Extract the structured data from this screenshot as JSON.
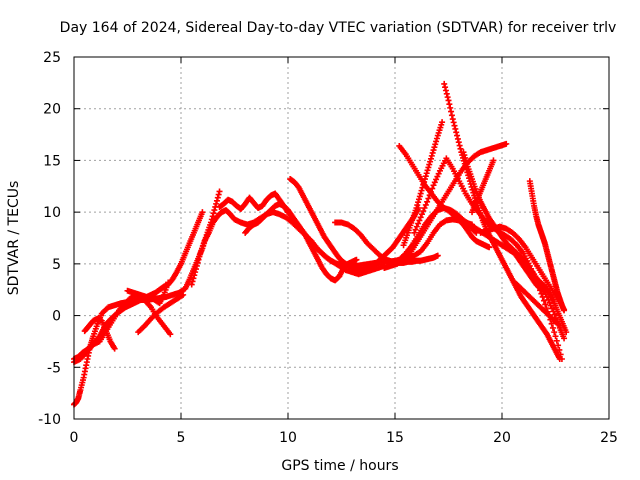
{
  "chart_data": {
    "type": "scatter",
    "title": "Day 164 of 2024, Sidereal Day-to-day VTEC variation (SDTVAR) for receiver trlv",
    "xlabel": "GPS time / hours",
    "ylabel": "SDTVAR / TECUs",
    "xlim": [
      0,
      25
    ],
    "ylim": [
      -10,
      25
    ],
    "xticks": [
      "0",
      "5",
      "10",
      "15",
      "20",
      "25"
    ],
    "yticks": [
      "-10",
      "-5",
      "0",
      "5",
      "10",
      "15",
      "20",
      "25"
    ],
    "grid": true,
    "marker": "+",
    "color": "#ff0000",
    "series": [
      {
        "x": [
          0.0,
          0.1,
          0.2,
          0.3,
          0.45,
          0.6,
          0.75,
          0.9,
          1.1,
          1.3,
          1.6,
          1.9,
          2.2,
          2.5,
          2.8,
          3.1,
          3.4,
          3.7,
          4.0,
          4.3,
          4.6,
          4.9,
          5.2,
          5.4,
          5.6,
          5.8,
          6.0,
          6.2,
          6.4,
          6.6,
          6.8
        ],
        "y": [
          -8.6,
          -8.4,
          -8.0,
          -7.2,
          -6.0,
          -4.5,
          -3.0,
          -2.0,
          -0.8,
          0.2,
          0.8,
          1.0,
          1.2,
          1.3,
          1.4,
          1.5,
          1.5,
          1.6,
          1.7,
          1.8,
          2.0,
          2.2,
          2.6,
          3.5,
          4.5,
          5.5,
          6.5,
          7.8,
          9.0,
          10.5,
          12.0
        ]
      },
      {
        "x": [
          0.0,
          0.2,
          0.4,
          0.6,
          0.8,
          1.0,
          1.2,
          1.4,
          1.6,
          1.8,
          2.0,
          2.2,
          2.4,
          2.6,
          2.8,
          3.0,
          3.2,
          3.4,
          3.6,
          3.8,
          4.0,
          4.2,
          4.4,
          4.6,
          4.8,
          5.0,
          5.2,
          5.4,
          5.6,
          5.8,
          6.0
        ],
        "y": [
          -4.2,
          -4.0,
          -3.6,
          -3.3,
          -3.0,
          -2.5,
          -2.0,
          -1.2,
          -0.6,
          -0.2,
          0.2,
          0.5,
          0.8,
          1.0,
          1.2,
          1.4,
          1.6,
          1.8,
          2.0,
          2.2,
          2.5,
          2.8,
          3.0,
          3.5,
          4.2,
          5.0,
          6.0,
          7.0,
          8.0,
          9.0,
          10.0
        ]
      },
      {
        "x": [
          0.0,
          0.3,
          0.6,
          0.9,
          1.2,
          1.5,
          1.8,
          2.1,
          2.4,
          2.7,
          3.0,
          3.3,
          3.6,
          3.9,
          4.2,
          4.5
        ],
        "y": [
          -4.5,
          -4.2,
          -3.5,
          -2.8,
          -2.5,
          -1.5,
          -0.5,
          0.5,
          1.2,
          1.8,
          2.0,
          1.5,
          0.8,
          -0.2,
          -1.0,
          -1.8
        ]
      },
      {
        "x": [
          0.5,
          0.7,
          0.9,
          1.1,
          1.3,
          1.5,
          1.7,
          1.9
        ],
        "y": [
          -1.5,
          -1.0,
          -0.5,
          -0.3,
          -0.5,
          -1.5,
          -2.5,
          -3.2
        ]
      },
      {
        "x": [
          2.5,
          2.8,
          3.1,
          3.4,
          3.7,
          4.0,
          4.2,
          4.4
        ],
        "y": [
          2.4,
          2.2,
          2.0,
          1.8,
          1.6,
          1.2,
          2.0,
          3.2
        ]
      },
      {
        "x": [
          3.0,
          3.3,
          3.6,
          3.9,
          4.2,
          4.5,
          4.8,
          5.1
        ],
        "y": [
          -1.6,
          -1.0,
          -0.3,
          0.3,
          0.8,
          1.2,
          1.6,
          2.0
        ]
      },
      {
        "x": [
          5.5,
          5.7,
          5.9,
          6.1,
          6.3,
          6.5,
          6.7,
          6.9,
          7.1,
          7.3,
          7.5,
          7.8,
          8.1,
          8.4,
          8.7,
          9.0,
          9.3,
          9.6,
          9.9,
          10.2,
          10.5,
          10.8,
          11.1,
          11.4,
          11.7,
          12.0,
          12.3,
          12.6,
          12.9,
          13.2,
          13.5,
          13.8,
          14.1,
          14.4,
          14.7,
          15.0,
          15.3,
          15.6,
          15.9,
          16.2,
          16.5,
          16.8,
          17.1,
          17.4,
          17.7,
          18.0,
          18.3,
          18.6
        ],
        "y": [
          3.0,
          4.5,
          6.0,
          7.2,
          8.0,
          9.0,
          9.6,
          10.0,
          10.2,
          9.8,
          9.3,
          9.0,
          8.8,
          9.0,
          9.4,
          9.8,
          10.0,
          9.8,
          9.5,
          9.0,
          8.4,
          7.8,
          7.2,
          6.4,
          5.8,
          5.3,
          5.0,
          4.9,
          4.8,
          4.8,
          4.9,
          5.0,
          5.1,
          5.2,
          5.2,
          5.3,
          5.4,
          5.6,
          5.8,
          6.2,
          7.0,
          8.0,
          8.8,
          9.2,
          9.3,
          9.2,
          9.0,
          8.8
        ]
      },
      {
        "x": [
          6.8,
          7.0,
          7.2,
          7.4,
          7.6,
          7.8,
          8.0,
          8.2,
          8.4,
          8.6,
          8.8,
          9.0,
          9.2,
          9.4,
          9.6,
          9.8,
          10.0,
          10.3,
          10.6,
          10.9,
          11.2,
          11.5,
          11.8,
          12.1,
          12.4,
          12.7,
          13.0,
          13.3,
          13.6,
          13.9,
          14.2,
          14.5
        ],
        "y": [
          10.5,
          10.8,
          11.2,
          11.0,
          10.6,
          10.3,
          10.8,
          11.4,
          10.9,
          10.4,
          10.6,
          11.2,
          11.6,
          11.8,
          11.2,
          10.6,
          10.0,
          9.2,
          8.4,
          7.6,
          6.8,
          6.2,
          5.6,
          5.2,
          4.8,
          4.4,
          4.2,
          4.0,
          4.2,
          4.4,
          4.6,
          4.8
        ]
      },
      {
        "x": [
          8.0,
          8.2,
          8.4,
          8.6,
          8.8,
          9.0,
          9.2,
          9.4,
          9.6,
          9.8,
          10.0,
          10.2,
          10.4,
          10.6,
          10.8,
          11.0,
          11.2,
          11.4,
          11.6,
          11.8,
          12.0,
          12.2,
          12.4,
          12.6,
          12.8,
          13.0,
          13.2
        ],
        "y": [
          8.0,
          8.5,
          8.8,
          9.0,
          9.4,
          9.8,
          10.2,
          10.6,
          10.8,
          10.6,
          10.2,
          9.6,
          9.0,
          8.4,
          7.8,
          7.0,
          6.2,
          5.4,
          4.6,
          4.0,
          3.6,
          3.4,
          3.8,
          4.6,
          5.0,
          5.2,
          5.4
        ]
      },
      {
        "x": [
          10.1,
          10.3,
          10.5,
          10.7,
          10.9,
          11.1,
          11.3,
          11.5,
          11.7,
          11.9,
          12.1,
          12.3,
          12.5,
          12.7,
          12.9,
          13.1,
          13.3,
          13.5,
          13.7,
          13.9,
          14.1,
          14.3,
          14.5,
          14.7,
          14.9,
          15.1,
          15.3,
          15.5,
          15.7,
          15.9,
          16.1
        ],
        "y": [
          13.2,
          12.9,
          12.4,
          11.6,
          10.8,
          10.0,
          9.2,
          8.4,
          7.6,
          7.0,
          6.4,
          5.8,
          5.3,
          5.0,
          4.8,
          4.6,
          4.4,
          4.4,
          4.6,
          4.8,
          5.0,
          5.4,
          5.8,
          6.2,
          6.6,
          7.2,
          7.8,
          8.4,
          9.0,
          9.6,
          10.4
        ]
      },
      {
        "x": [
          12.2,
          12.5,
          12.8,
          13.1,
          13.4,
          13.7,
          14.0,
          14.3,
          14.6,
          14.9,
          15.2,
          15.5,
          15.8,
          16.1,
          16.4,
          16.7,
          17.0,
          17.3,
          17.6,
          17.9,
          18.2,
          18.5,
          18.8
        ],
        "y": [
          9.0,
          9.0,
          8.8,
          8.4,
          7.8,
          7.0,
          6.4,
          5.8,
          5.4,
          5.2,
          5.4,
          6.0,
          6.8,
          7.8,
          8.8,
          9.6,
          10.2,
          10.4,
          10.2,
          9.8,
          9.2,
          8.6,
          8.0
        ]
      },
      {
        "x": [
          14.8,
          15.0,
          15.2,
          15.4,
          15.6,
          15.8,
          16.0,
          16.2,
          16.4,
          16.6,
          16.8,
          17.0
        ],
        "y": [
          5.0,
          5.0,
          5.1,
          5.1,
          5.2,
          5.2,
          5.3,
          5.3,
          5.4,
          5.5,
          5.6,
          5.8
        ]
      },
      {
        "x": [
          14.5,
          14.8,
          15.1,
          15.4,
          15.7,
          16.0,
          16.3,
          16.6,
          16.9,
          17.2,
          17.5,
          17.8,
          18.1,
          18.4,
          18.7,
          19.0,
          19.3,
          19.6,
          19.9,
          20.2
        ],
        "y": [
          4.6,
          4.8,
          5.0,
          5.4,
          6.0,
          7.0,
          8.0,
          9.0,
          10.0,
          11.0,
          12.0,
          13.0,
          14.0,
          14.8,
          15.4,
          15.8,
          16.0,
          16.2,
          16.4,
          16.6
        ]
      },
      {
        "x": [
          15.2,
          15.5,
          15.8,
          16.1,
          16.4,
          16.7,
          17.0,
          17.3,
          17.6,
          17.9,
          18.2,
          18.5,
          18.8,
          19.1,
          19.4,
          19.7,
          20.0,
          20.3,
          20.6,
          20.9,
          21.2,
          21.5,
          21.8,
          22.1,
          22.4,
          22.7,
          22.9
        ],
        "y": [
          16.4,
          15.6,
          14.6,
          13.6,
          12.6,
          11.8,
          11.0,
          10.4,
          10.0,
          9.6,
          9.2,
          8.8,
          8.4,
          8.0,
          7.6,
          7.2,
          6.8,
          6.4,
          6.0,
          5.4,
          4.8,
          4.0,
          3.0,
          1.8,
          0.4,
          -1.2,
          -2.2
        ]
      },
      {
        "x": [
          15.4,
          15.6,
          15.8,
          16.0,
          16.2,
          16.4,
          16.6,
          16.8,
          17.0,
          17.2
        ],
        "y": [
          6.8,
          8.0,
          9.2,
          10.4,
          11.8,
          13.2,
          14.6,
          16.0,
          17.4,
          18.7
        ]
      },
      {
        "x": [
          15.9,
          16.2,
          16.5,
          16.8,
          17.1,
          17.4,
          17.7,
          18.0,
          18.3,
          18.6,
          18.9,
          19.2,
          19.5,
          19.8,
          20.1,
          20.4,
          20.7,
          21.0,
          21.3,
          21.6,
          21.9,
          22.2,
          22.5,
          22.8
        ],
        "y": [
          8.0,
          9.5,
          11.0,
          12.6,
          14.0,
          15.2,
          14.2,
          13.0,
          11.8,
          10.8,
          10.0,
          9.2,
          8.6,
          8.2,
          7.8,
          7.4,
          6.8,
          6.0,
          4.8,
          3.4,
          1.8,
          0.0,
          -2.0,
          -4.2
        ]
      },
      {
        "x": [
          17.3,
          17.5,
          17.7,
          17.9,
          18.1,
          18.3,
          18.5,
          18.7,
          18.9,
          19.1,
          19.3,
          19.5,
          19.7,
          19.9,
          20.1,
          20.3,
          20.5,
          20.7,
          20.9,
          21.1,
          21.3,
          21.5,
          21.7,
          21.9,
          22.1,
          22.3,
          22.5,
          22.7
        ],
        "y": [
          22.4,
          20.8,
          19.0,
          17.4,
          15.8,
          14.4,
          13.0,
          11.6,
          10.4,
          9.2,
          8.2,
          7.4,
          6.6,
          5.8,
          5.0,
          4.2,
          3.4,
          2.6,
          1.8,
          1.2,
          0.6,
          0.0,
          -0.6,
          -1.2,
          -1.8,
          -2.6,
          -3.4,
          -4.2
        ]
      },
      {
        "x": [
          17.5,
          17.6,
          17.7,
          17.8,
          17.9,
          18.0,
          18.2,
          18.4,
          18.6,
          18.8,
          19.0,
          19.2,
          19.4
        ],
        "y": [
          10.2,
          10.0,
          9.8,
          9.6,
          9.4,
          9.2,
          8.8,
          8.2,
          7.6,
          7.2,
          7.0,
          6.8,
          6.6
        ]
      },
      {
        "x": [
          18.2,
          18.4,
          18.6,
          18.8,
          19.0,
          19.2,
          19.4,
          19.6,
          19.8,
          20.0,
          20.2,
          20.4,
          20.6,
          20.8,
          21.0
        ],
        "y": [
          15.8,
          14.4,
          13.2,
          12.0,
          11.0,
          10.2,
          9.4,
          8.8,
          8.2,
          7.6,
          7.0,
          6.6,
          6.2,
          5.8,
          5.4
        ]
      },
      {
        "x": [
          18.6,
          18.8,
          19.0,
          19.2,
          19.4,
          19.6
        ],
        "y": [
          10.0,
          11.0,
          12.0,
          13.0,
          14.0,
          15.0
        ]
      },
      {
        "x": [
          19.0,
          19.3,
          19.6,
          19.9,
          20.2,
          20.5,
          20.8,
          21.1,
          21.4,
          21.7,
          22.0,
          22.3,
          22.6,
          22.9
        ],
        "y": [
          8.0,
          8.2,
          8.4,
          8.6,
          8.4,
          8.0,
          7.4,
          6.6,
          5.6,
          4.6,
          3.6,
          2.6,
          1.6,
          0.6
        ]
      },
      {
        "x": [
          20.2,
          20.4,
          20.6,
          20.8,
          21.0,
          21.2,
          21.4,
          21.6,
          21.8,
          22.0
        ],
        "y": [
          6.8,
          6.4,
          6.0,
          5.4,
          4.8,
          4.2,
          3.6,
          3.0,
          2.6,
          2.4
        ]
      },
      {
        "x": [
          21.3,
          21.4,
          21.5,
          21.6,
          21.7,
          21.8,
          21.9,
          22.0,
          22.1,
          22.2,
          22.3,
          22.4,
          22.5,
          22.6,
          22.7,
          22.8,
          22.9
        ],
        "y": [
          13.0,
          11.8,
          10.6,
          9.6,
          8.8,
          8.2,
          7.6,
          7.0,
          6.2,
          5.4,
          4.6,
          3.8,
          3.0,
          2.2,
          1.6,
          1.0,
          0.5
        ]
      },
      {
        "x": [
          21.6,
          21.8,
          22.0,
          22.2,
          22.4,
          22.6,
          22.8,
          23.0
        ],
        "y": [
          3.6,
          3.2,
          2.8,
          2.2,
          1.4,
          0.4,
          -0.6,
          -1.6
        ]
      },
      {
        "x": [
          20.6,
          20.9,
          21.2,
          21.5,
          21.8,
          22.1,
          22.4,
          22.7
        ],
        "y": [
          3.2,
          2.6,
          2.0,
          1.4,
          0.8,
          0.2,
          -0.4,
          -1.0
        ]
      }
    ]
  }
}
